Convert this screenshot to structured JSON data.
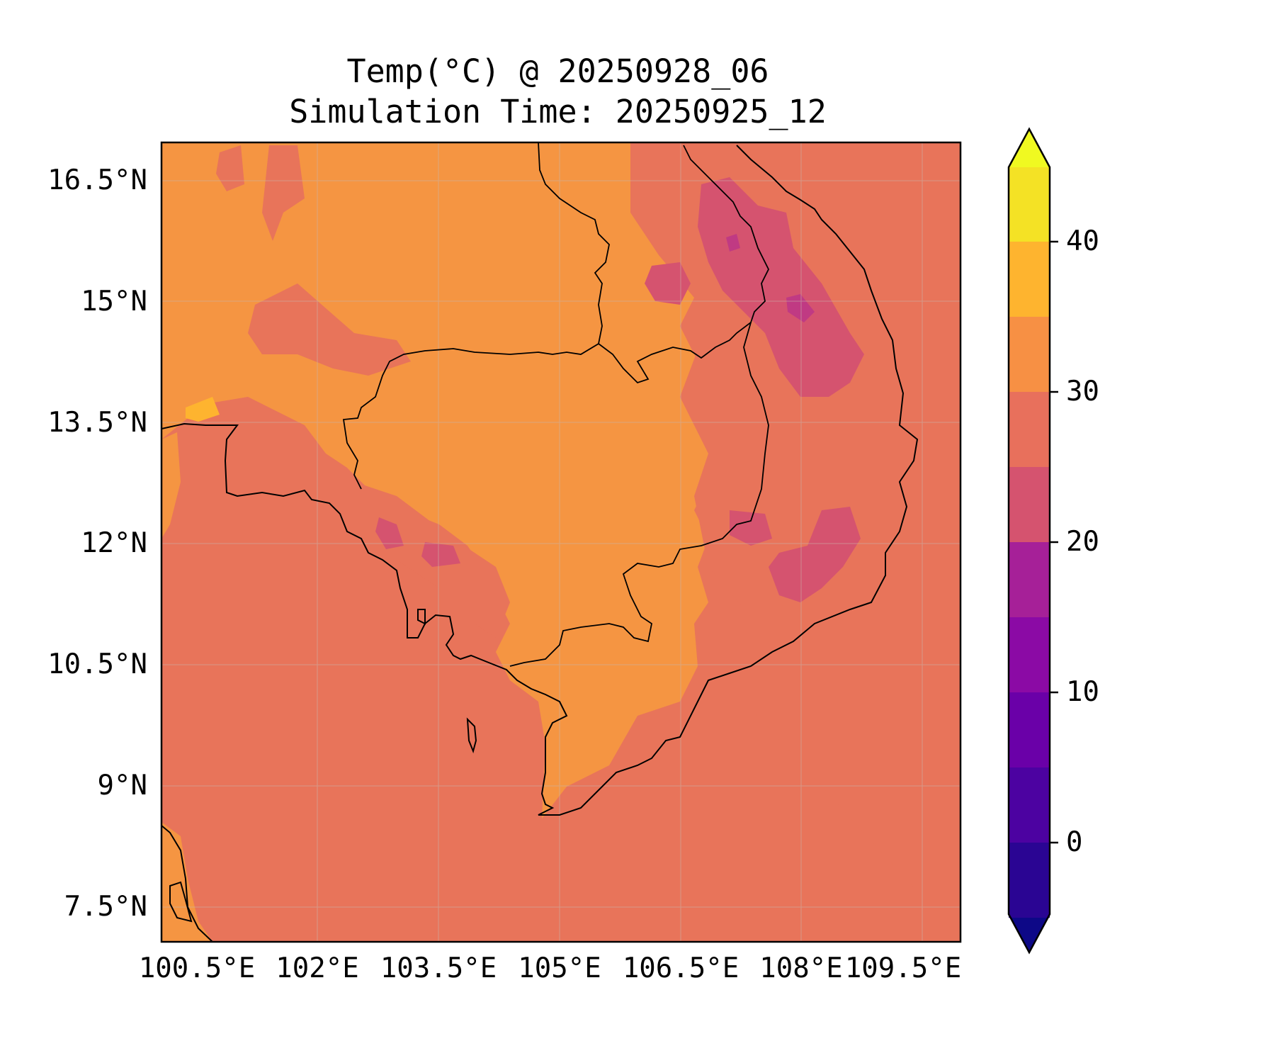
{
  "title": {
    "line1": "Temp(°C) @ 20250928_06",
    "line2": "Simulation Time: 20250925_12"
  },
  "map": {
    "lat_ticks": [
      "16.5°N",
      "15°N",
      "13.5°N",
      "12°N",
      "10.5°N",
      "9°N",
      "7.5°N"
    ],
    "lon_ticks": [
      "100.5°E",
      "102°E",
      "103.5°E",
      "105°E",
      "106.5°E",
      "108°E",
      "109.5°E"
    ],
    "lat_range": [
      7.1,
      17.0
    ],
    "lon_range": [
      100.5,
      110.4
    ],
    "gridlines": true,
    "coastlines": true,
    "borders": true
  },
  "colorbar": {
    "ticks": [
      "40",
      "30",
      "20",
      "10",
      "0"
    ],
    "levels": [
      -5,
      0,
      5,
      10,
      15,
      20,
      25,
      30,
      35,
      40,
      45
    ],
    "extend": "both",
    "colormap": "plasma",
    "colors": [
      "#0d0887",
      "#2a0593",
      "#4c02a1",
      "#6a00a8",
      "#8b0aa5",
      "#a62098",
      "#c03a83",
      "#d5536f",
      "#e8705c",
      "#f79044",
      "#feb42f",
      "#f4e225",
      "#f0f921"
    ]
  },
  "field": {
    "dominant_land": "30–35 °C",
    "dominant_sea": "25–30 °C",
    "highlands_min": "15–20 °C"
  }
}
